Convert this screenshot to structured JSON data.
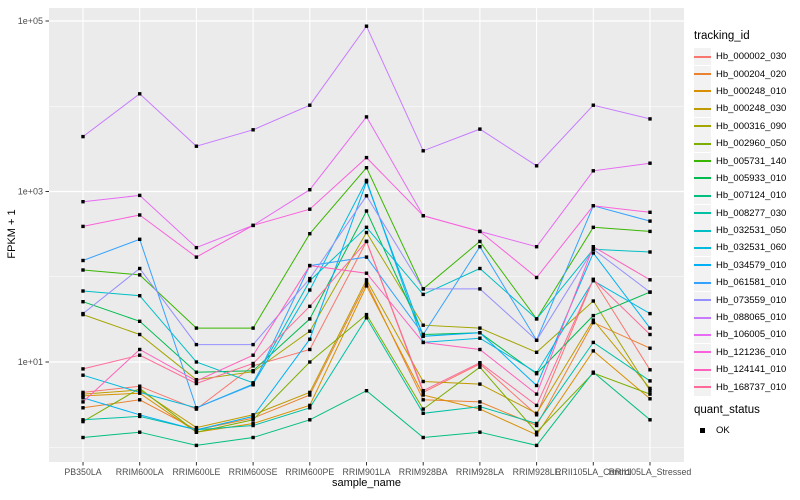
{
  "figure": {
    "background": "#FFFFFF",
    "panel_background": "#EBEBEB",
    "grid_color": "#FFFFFF",
    "tick_label_color": "#4D4D4D",
    "tick_mark_color": "#333333",
    "marker_color": "#000000"
  },
  "chart_data": {
    "type": "line",
    "title": "",
    "xlabel": "sample_name",
    "ylabel": "FPKM + 1",
    "y_scale": "log10",
    "grid": "on",
    "legend_position": "right",
    "y_ticks": [
      {
        "label": "1e+01",
        "value": 10
      },
      {
        "label": "1e+03",
        "value": 1000
      },
      {
        "label": "1e+05",
        "value": 100000
      }
    ],
    "y_minor_values": [
      1,
      100,
      10000
    ],
    "ylim_log": [
      -0.17,
      5.15
    ],
    "categories": [
      "PB350LA",
      "RRIM600LA",
      "RRIM600LE",
      "RRIM600SE",
      "RRIM600PE",
      "RRIM901LA",
      "RRIM928BA",
      "RRIM928LA",
      "RRIM928LE",
      "RRII105LA_Control",
      "RRII105LA_Stressed"
    ],
    "series": [
      {
        "name": "Hb_000002_030",
        "color": "#F8766D",
        "values": [
          4.4,
          5.2,
          2.8,
          9,
          14,
          260,
          4.4,
          9.5,
          2.4,
          93,
          8.1
        ]
      },
      {
        "name": "Hb_000204_020",
        "color": "#EA8331",
        "values": [
          2.9,
          3.6,
          1.6,
          2.2,
          4.1,
          85,
          3.6,
          3.4,
          1.8,
          29,
          14.5
        ]
      },
      {
        "name": "Hb_000248_010",
        "color": "#D89000",
        "values": [
          4,
          4.3,
          1.5,
          1.9,
          3.1,
          78,
          4.1,
          2.8,
          1.4,
          13.5,
          3.7
        ]
      },
      {
        "name": "Hb_000248_030",
        "color": "#C09B00",
        "values": [
          4.2,
          4.7,
          1.7,
          2.4,
          4.4,
          92,
          5.9,
          5.5,
          2.5,
          31,
          4.9
        ]
      },
      {
        "name": "Hb_000316_090",
        "color": "#A3A500",
        "values": [
          36,
          21,
          6.2,
          7.7,
          23,
          330,
          27,
          25,
          13,
          52,
          4.6
        ]
      },
      {
        "name": "Hb_002960_050",
        "color": "#7CAE00",
        "values": [
          2,
          4.9,
          1.5,
          2.1,
          10,
          36,
          2.8,
          8.7,
          1.5,
          7.4,
          4.2
        ]
      },
      {
        "name": "Hb_005731_140",
        "color": "#39B600",
        "values": [
          120,
          105,
          25,
          25,
          320,
          1900,
          72,
          260,
          32,
          380,
          340
        ]
      },
      {
        "name": "Hb_005933_010",
        "color": "#00BB4E",
        "values": [
          51,
          30,
          7.6,
          7.9,
          32,
          590,
          21,
          22,
          7.3,
          35,
          66
        ]
      },
      {
        "name": "Hb_007124_010",
        "color": "#00BF7D",
        "values": [
          1.3,
          1.5,
          1.05,
          1.3,
          2.1,
          4.6,
          1.3,
          1.5,
          1.05,
          7.6,
          2.1
        ]
      },
      {
        "name": "Hb_008277_030",
        "color": "#00C1A3",
        "values": [
          2.1,
          2.3,
          1.6,
          1.8,
          2.9,
          33,
          2.5,
          3,
          1.9,
          17,
          6
        ]
      },
      {
        "name": "Hb_032531_050",
        "color": "#00BFC4",
        "values": [
          68,
          60,
          10,
          5.7,
          90,
          380,
          62,
          125,
          32,
          210,
          195
        ]
      },
      {
        "name": "Hb_032531_060",
        "color": "#00BAE0",
        "values": [
          7,
          4.4,
          2.9,
          5.5,
          70,
          1350,
          17,
          19,
          7.5,
          90,
          37
        ]
      },
      {
        "name": "Hb_034579_010",
        "color": "#00B0F6",
        "values": [
          3.8,
          2.4,
          1.6,
          2.3,
          18.5,
          1300,
          20,
          22,
          5.3,
          190,
          25
        ]
      },
      {
        "name": "Hb_061581_010",
        "color": "#35A2FF",
        "values": [
          155,
          275,
          2.9,
          5.4,
          135,
          170,
          21,
          225,
          18,
          680,
          450
        ]
      },
      {
        "name": "Hb_073559_010",
        "color": "#9590FF",
        "values": [
          37,
          125,
          16,
          16,
          95,
          890,
          72,
          72,
          18,
          210,
          66
        ]
      },
      {
        "name": "Hb_088065_010",
        "color": "#C77CFF",
        "values": [
          4400,
          14000,
          3400,
          5300,
          10300,
          87000,
          3000,
          5400,
          2000,
          10300,
          7100
        ]
      },
      {
        "name": "Hb_106005_010",
        "color": "#E76BF3",
        "values": [
          760,
          900,
          220,
          400,
          1050,
          7500,
          520,
          340,
          225,
          1750,
          2150
        ]
      },
      {
        "name": "Hb_121236_010",
        "color": "#FA62DB",
        "values": [
          390,
          530,
          170,
          400,
          620,
          2500,
          520,
          340,
          98,
          680,
          570
        ]
      },
      {
        "name": "Hb_124141_010",
        "color": "#FF62BC",
        "values": [
          3.4,
          14,
          6,
          12,
          135,
          110,
          17,
          14,
          4.2,
          225,
          92
        ]
      },
      {
        "name": "Hb_168737_010",
        "color": "#FF6A98",
        "values": [
          8.3,
          12,
          5.6,
          9.6,
          45,
          260,
          4.6,
          9.8,
          3.1,
          93,
          21
        ]
      }
    ],
    "marker": {
      "shape": "square",
      "size": 3.4
    }
  },
  "legend": {
    "tracking_title": "tracking_id",
    "quant_title": "quant_status",
    "quant_items": [
      {
        "label": "OK"
      }
    ],
    "key_background": "#F2F2F2"
  }
}
